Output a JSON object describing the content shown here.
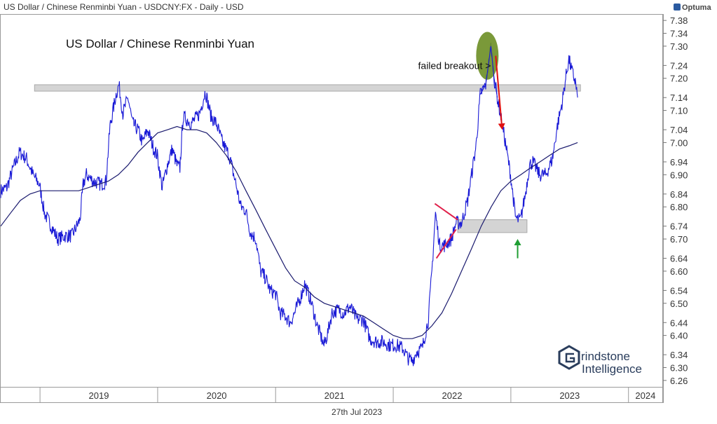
{
  "header": "US Dollar / Chinese Renminbi Yuan - USDCNY:FX - Daily - USD",
  "brand": "Optuma",
  "footer_date": "27th Jul 2023",
  "logo": {
    "line1": "rindstone",
    "line2": "Intelligence",
    "mark": "G"
  },
  "chart_data": {
    "type": "line",
    "title": "US Dollar / Chinese Renminbi Yuan",
    "xlabel": "",
    "ylabel": "",
    "x_ticks": [
      "2019",
      "2020",
      "2021",
      "2022",
      "2023",
      "2024"
    ],
    "y_ticks": [
      7.38,
      7.34,
      7.3,
      7.24,
      7.2,
      7.14,
      7.1,
      7.04,
      7.0,
      6.94,
      6.9,
      6.84,
      6.8,
      6.74,
      6.7,
      6.64,
      6.6,
      6.54,
      6.5,
      6.44,
      6.4,
      6.34,
      6.3,
      6.26
    ],
    "ylim": [
      6.26,
      7.38
    ],
    "xlim": [
      "2018-09-01",
      "2024-04-15"
    ],
    "grid": false,
    "series": [
      {
        "color": "#1a1ad6",
        "kind": "daily price",
        "points": [
          [
            "2018-09-01",
            6.85
          ],
          [
            "2018-09-20",
            6.86
          ],
          [
            "2018-10-10",
            6.92
          ],
          [
            "2018-10-30",
            6.97
          ],
          [
            "2018-11-20",
            6.95
          ],
          [
            "2018-12-10",
            6.9
          ],
          [
            "2018-12-30",
            6.87
          ],
          [
            "2019-01-15",
            6.78
          ],
          [
            "2019-02-05",
            6.74
          ],
          [
            "2019-02-25",
            6.7
          ],
          [
            "2019-03-20",
            6.71
          ],
          [
            "2019-04-10",
            6.71
          ],
          [
            "2019-05-05",
            6.76
          ],
          [
            "2019-05-15",
            6.87
          ],
          [
            "2019-05-25",
            6.9
          ],
          [
            "2019-06-15",
            6.88
          ],
          [
            "2019-07-10",
            6.87
          ],
          [
            "2019-07-25",
            6.88
          ],
          [
            "2019-08-06",
            7.05
          ],
          [
            "2019-08-25",
            7.15
          ],
          [
            "2019-09-03",
            7.18
          ],
          [
            "2019-09-15",
            7.09
          ],
          [
            "2019-10-01",
            7.14
          ],
          [
            "2019-10-15",
            7.06
          ],
          [
            "2019-11-01",
            7.04
          ],
          [
            "2019-11-15",
            7.0
          ],
          [
            "2019-12-01",
            7.04
          ],
          [
            "2019-12-20",
            6.98
          ],
          [
            "2019-12-31",
            6.96
          ],
          [
            "2020-01-15",
            6.86
          ],
          [
            "2020-01-31",
            6.93
          ],
          [
            "2020-02-15",
            6.98
          ],
          [
            "2020-03-01",
            6.93
          ],
          [
            "2020-03-10",
            6.92
          ],
          [
            "2020-03-20",
            7.08
          ],
          [
            "2020-04-15",
            7.06
          ],
          [
            "2020-05-10",
            7.09
          ],
          [
            "2020-05-28",
            7.16
          ],
          [
            "2020-06-15",
            7.08
          ],
          [
            "2020-07-01",
            7.06
          ],
          [
            "2020-07-20",
            7.0
          ],
          [
            "2020-08-10",
            6.96
          ],
          [
            "2020-08-31",
            6.87
          ],
          [
            "2020-09-15",
            6.8
          ],
          [
            "2020-09-30",
            6.79
          ],
          [
            "2020-10-15",
            6.72
          ],
          [
            "2020-11-01",
            6.7
          ],
          [
            "2020-11-15",
            6.6
          ],
          [
            "2020-11-30",
            6.58
          ],
          [
            "2020-12-15",
            6.54
          ],
          [
            "2021-01-01",
            6.53
          ],
          [
            "2021-01-15",
            6.47
          ],
          [
            "2021-02-01",
            6.46
          ],
          [
            "2021-02-15",
            6.44
          ],
          [
            "2021-03-01",
            6.47
          ],
          [
            "2021-03-20",
            6.52
          ],
          [
            "2021-04-01",
            6.56
          ],
          [
            "2021-04-20",
            6.51
          ],
          [
            "2021-05-10",
            6.43
          ],
          [
            "2021-05-31",
            6.37
          ],
          [
            "2021-06-10",
            6.4
          ],
          [
            "2021-06-25",
            6.47
          ],
          [
            "2021-07-15",
            6.48
          ],
          [
            "2021-08-01",
            6.47
          ],
          [
            "2021-08-20",
            6.49
          ],
          [
            "2021-09-10",
            6.45
          ],
          [
            "2021-09-30",
            6.45
          ],
          [
            "2021-10-20",
            6.39
          ],
          [
            "2021-11-10",
            6.38
          ],
          [
            "2021-12-01",
            6.38
          ],
          [
            "2021-12-20",
            6.37
          ],
          [
            "2022-01-10",
            6.37
          ],
          [
            "2022-01-31",
            6.36
          ],
          [
            "2022-02-15",
            6.33
          ],
          [
            "2022-03-01",
            6.32
          ],
          [
            "2022-03-15",
            6.35
          ],
          [
            "2022-04-01",
            6.36
          ],
          [
            "2022-04-20",
            6.45
          ],
          [
            "2022-05-01",
            6.6
          ],
          [
            "2022-05-12",
            6.78
          ],
          [
            "2022-05-25",
            6.68
          ],
          [
            "2022-06-10",
            6.68
          ],
          [
            "2022-06-30",
            6.7
          ],
          [
            "2022-07-15",
            6.75
          ],
          [
            "2022-08-01",
            6.75
          ],
          [
            "2022-08-20",
            6.82
          ],
          [
            "2022-09-01",
            6.9
          ],
          [
            "2022-09-15",
            6.99
          ],
          [
            "2022-09-28",
            7.15
          ],
          [
            "2022-10-15",
            7.18
          ],
          [
            "2022-10-31",
            7.3
          ],
          [
            "2022-11-10",
            7.2
          ],
          [
            "2022-11-20",
            7.14
          ],
          [
            "2022-12-01",
            7.08
          ],
          [
            "2022-12-15",
            7.0
          ],
          [
            "2022-12-31",
            6.9
          ],
          [
            "2023-01-15",
            6.77
          ],
          [
            "2023-01-20",
            6.76
          ],
          [
            "2023-01-31",
            6.76
          ],
          [
            "2023-02-15",
            6.84
          ],
          [
            "2023-02-28",
            6.93
          ],
          [
            "2023-03-10",
            6.94
          ],
          [
            "2023-03-31",
            6.9
          ],
          [
            "2023-04-20",
            6.9
          ],
          [
            "2023-05-10",
            6.95
          ],
          [
            "2023-05-25",
            7.05
          ],
          [
            "2023-06-10",
            7.13
          ],
          [
            "2023-06-20",
            7.2
          ],
          [
            "2023-06-30",
            7.26
          ],
          [
            "2023-07-10",
            7.22
          ],
          [
            "2023-07-20",
            7.19
          ],
          [
            "2023-07-27",
            7.14
          ]
        ]
      },
      {
        "color": "#1a1a6e",
        "kind": "moving average",
        "points": [
          [
            "2018-09-01",
            6.74
          ],
          [
            "2018-10-01",
            6.78
          ],
          [
            "2018-11-01",
            6.82
          ],
          [
            "2018-12-01",
            6.84
          ],
          [
            "2019-01-01",
            6.85
          ],
          [
            "2019-03-01",
            6.85
          ],
          [
            "2019-05-01",
            6.85
          ],
          [
            "2019-07-01",
            6.87
          ],
          [
            "2019-08-01",
            6.88
          ],
          [
            "2019-09-01",
            6.9
          ],
          [
            "2019-10-01",
            6.93
          ],
          [
            "2019-11-01",
            6.97
          ],
          [
            "2019-12-01",
            7.0
          ],
          [
            "2020-01-01",
            7.03
          ],
          [
            "2020-02-01",
            7.04
          ],
          [
            "2020-03-01",
            7.05
          ],
          [
            "2020-04-01",
            7.04
          ],
          [
            "2020-05-01",
            7.04
          ],
          [
            "2020-06-01",
            7.03
          ],
          [
            "2020-07-01",
            7.0
          ],
          [
            "2020-08-01",
            6.96
          ],
          [
            "2020-09-01",
            6.91
          ],
          [
            "2020-10-01",
            6.85
          ],
          [
            "2020-11-01",
            6.79
          ],
          [
            "2020-12-01",
            6.73
          ],
          [
            "2021-01-01",
            6.67
          ],
          [
            "2021-02-01",
            6.61
          ],
          [
            "2021-03-01",
            6.57
          ],
          [
            "2021-04-01",
            6.55
          ],
          [
            "2021-05-01",
            6.52
          ],
          [
            "2021-06-01",
            6.5
          ],
          [
            "2021-07-01",
            6.49
          ],
          [
            "2021-08-01",
            6.48
          ],
          [
            "2021-09-01",
            6.47
          ],
          [
            "2021-10-01",
            6.46
          ],
          [
            "2021-11-01",
            6.44
          ],
          [
            "2021-12-01",
            6.42
          ],
          [
            "2022-01-01",
            6.4
          ],
          [
            "2022-02-01",
            6.39
          ],
          [
            "2022-03-01",
            6.39
          ],
          [
            "2022-04-01",
            6.4
          ],
          [
            "2022-05-01",
            6.43
          ],
          [
            "2022-06-01",
            6.47
          ],
          [
            "2022-07-01",
            6.53
          ],
          [
            "2022-08-01",
            6.6
          ],
          [
            "2022-09-01",
            6.67
          ],
          [
            "2022-10-01",
            6.74
          ],
          [
            "2022-11-01",
            6.8
          ],
          [
            "2022-12-01",
            6.85
          ],
          [
            "2023-01-01",
            6.88
          ],
          [
            "2023-02-01",
            6.9
          ],
          [
            "2023-03-01",
            6.92
          ],
          [
            "2023-04-01",
            6.94
          ],
          [
            "2023-05-01",
            6.96
          ],
          [
            "2023-06-01",
            6.98
          ],
          [
            "2023-07-01",
            6.99
          ],
          [
            "2023-07-27",
            7.0
          ]
        ]
      }
    ],
    "bands": [
      {
        "from": "2018-12-15",
        "to": "2023-08-05",
        "y0": 7.16,
        "y1": 7.18,
        "color": "#d4d4d4"
      },
      {
        "from": "2022-07-20",
        "to": "2023-02-20",
        "y0": 6.72,
        "y1": 6.76,
        "color": "#d4d4d4"
      }
    ],
    "annotations": [
      {
        "text": "failed breakout >",
        "date": "2022-09-20",
        "value": 7.24
      }
    ],
    "highlight": {
      "date": "2022-10-20",
      "y0": 7.2,
      "y1": 7.34,
      "color": "#6b8e23"
    },
    "arrows": [
      {
        "color": "#e01010",
        "from": [
          "2022-11-15",
          7.27
        ],
        "to": [
          "2022-12-05",
          7.04
        ]
      },
      {
        "color": "#1f9e33",
        "from": [
          "2023-01-22",
          6.64
        ],
        "to": [
          "2023-01-22",
          6.7
        ]
      }
    ],
    "trendlines": [
      {
        "color": "#e0204a",
        "from": [
          "2022-05-10",
          6.81
        ],
        "to": [
          "2022-07-20",
          6.76
        ]
      },
      {
        "color": "#e0204a",
        "from": [
          "2022-05-15",
          6.64
        ],
        "to": [
          "2022-07-15",
          6.73
        ]
      }
    ]
  }
}
